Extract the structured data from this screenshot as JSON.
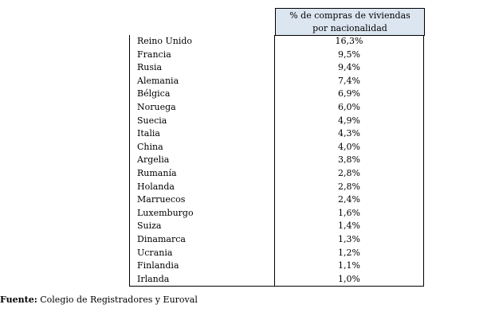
{
  "table": {
    "header": "% de compras de viviendas por nacionalidad",
    "rows": [
      [
        "Reino Unido",
        "16,3%"
      ],
      [
        "Francia",
        "9,5%"
      ],
      [
        "Rusia",
        "9,4%"
      ],
      [
        "Alemania",
        "7,4%"
      ],
      [
        "Bélgica",
        "6,9%"
      ],
      [
        "Noruega",
        "6,0%"
      ],
      [
        "Suecia",
        "4,9%"
      ],
      [
        "Italia",
        "4,3%"
      ],
      [
        "China",
        "4,0%"
      ],
      [
        "Argelia",
        "3,8%"
      ],
      [
        "Rumanía",
        "2,8%"
      ],
      [
        "Holanda",
        "2,8%"
      ],
      [
        "Marruecos",
        "2,4%"
      ],
      [
        "Luxemburgo",
        "1,6%"
      ],
      [
        "Suiza",
        "1,4%"
      ],
      [
        "Dinamarca",
        "1,3%"
      ],
      [
        "Ucrania",
        "1,2%"
      ],
      [
        "Finlandia",
        "1,1%"
      ],
      [
        "Irlanda",
        "1,0%"
      ]
    ]
  },
  "source": {
    "label": "Fuente:",
    "text": "Colegio de Registradores y Euroval"
  }
}
